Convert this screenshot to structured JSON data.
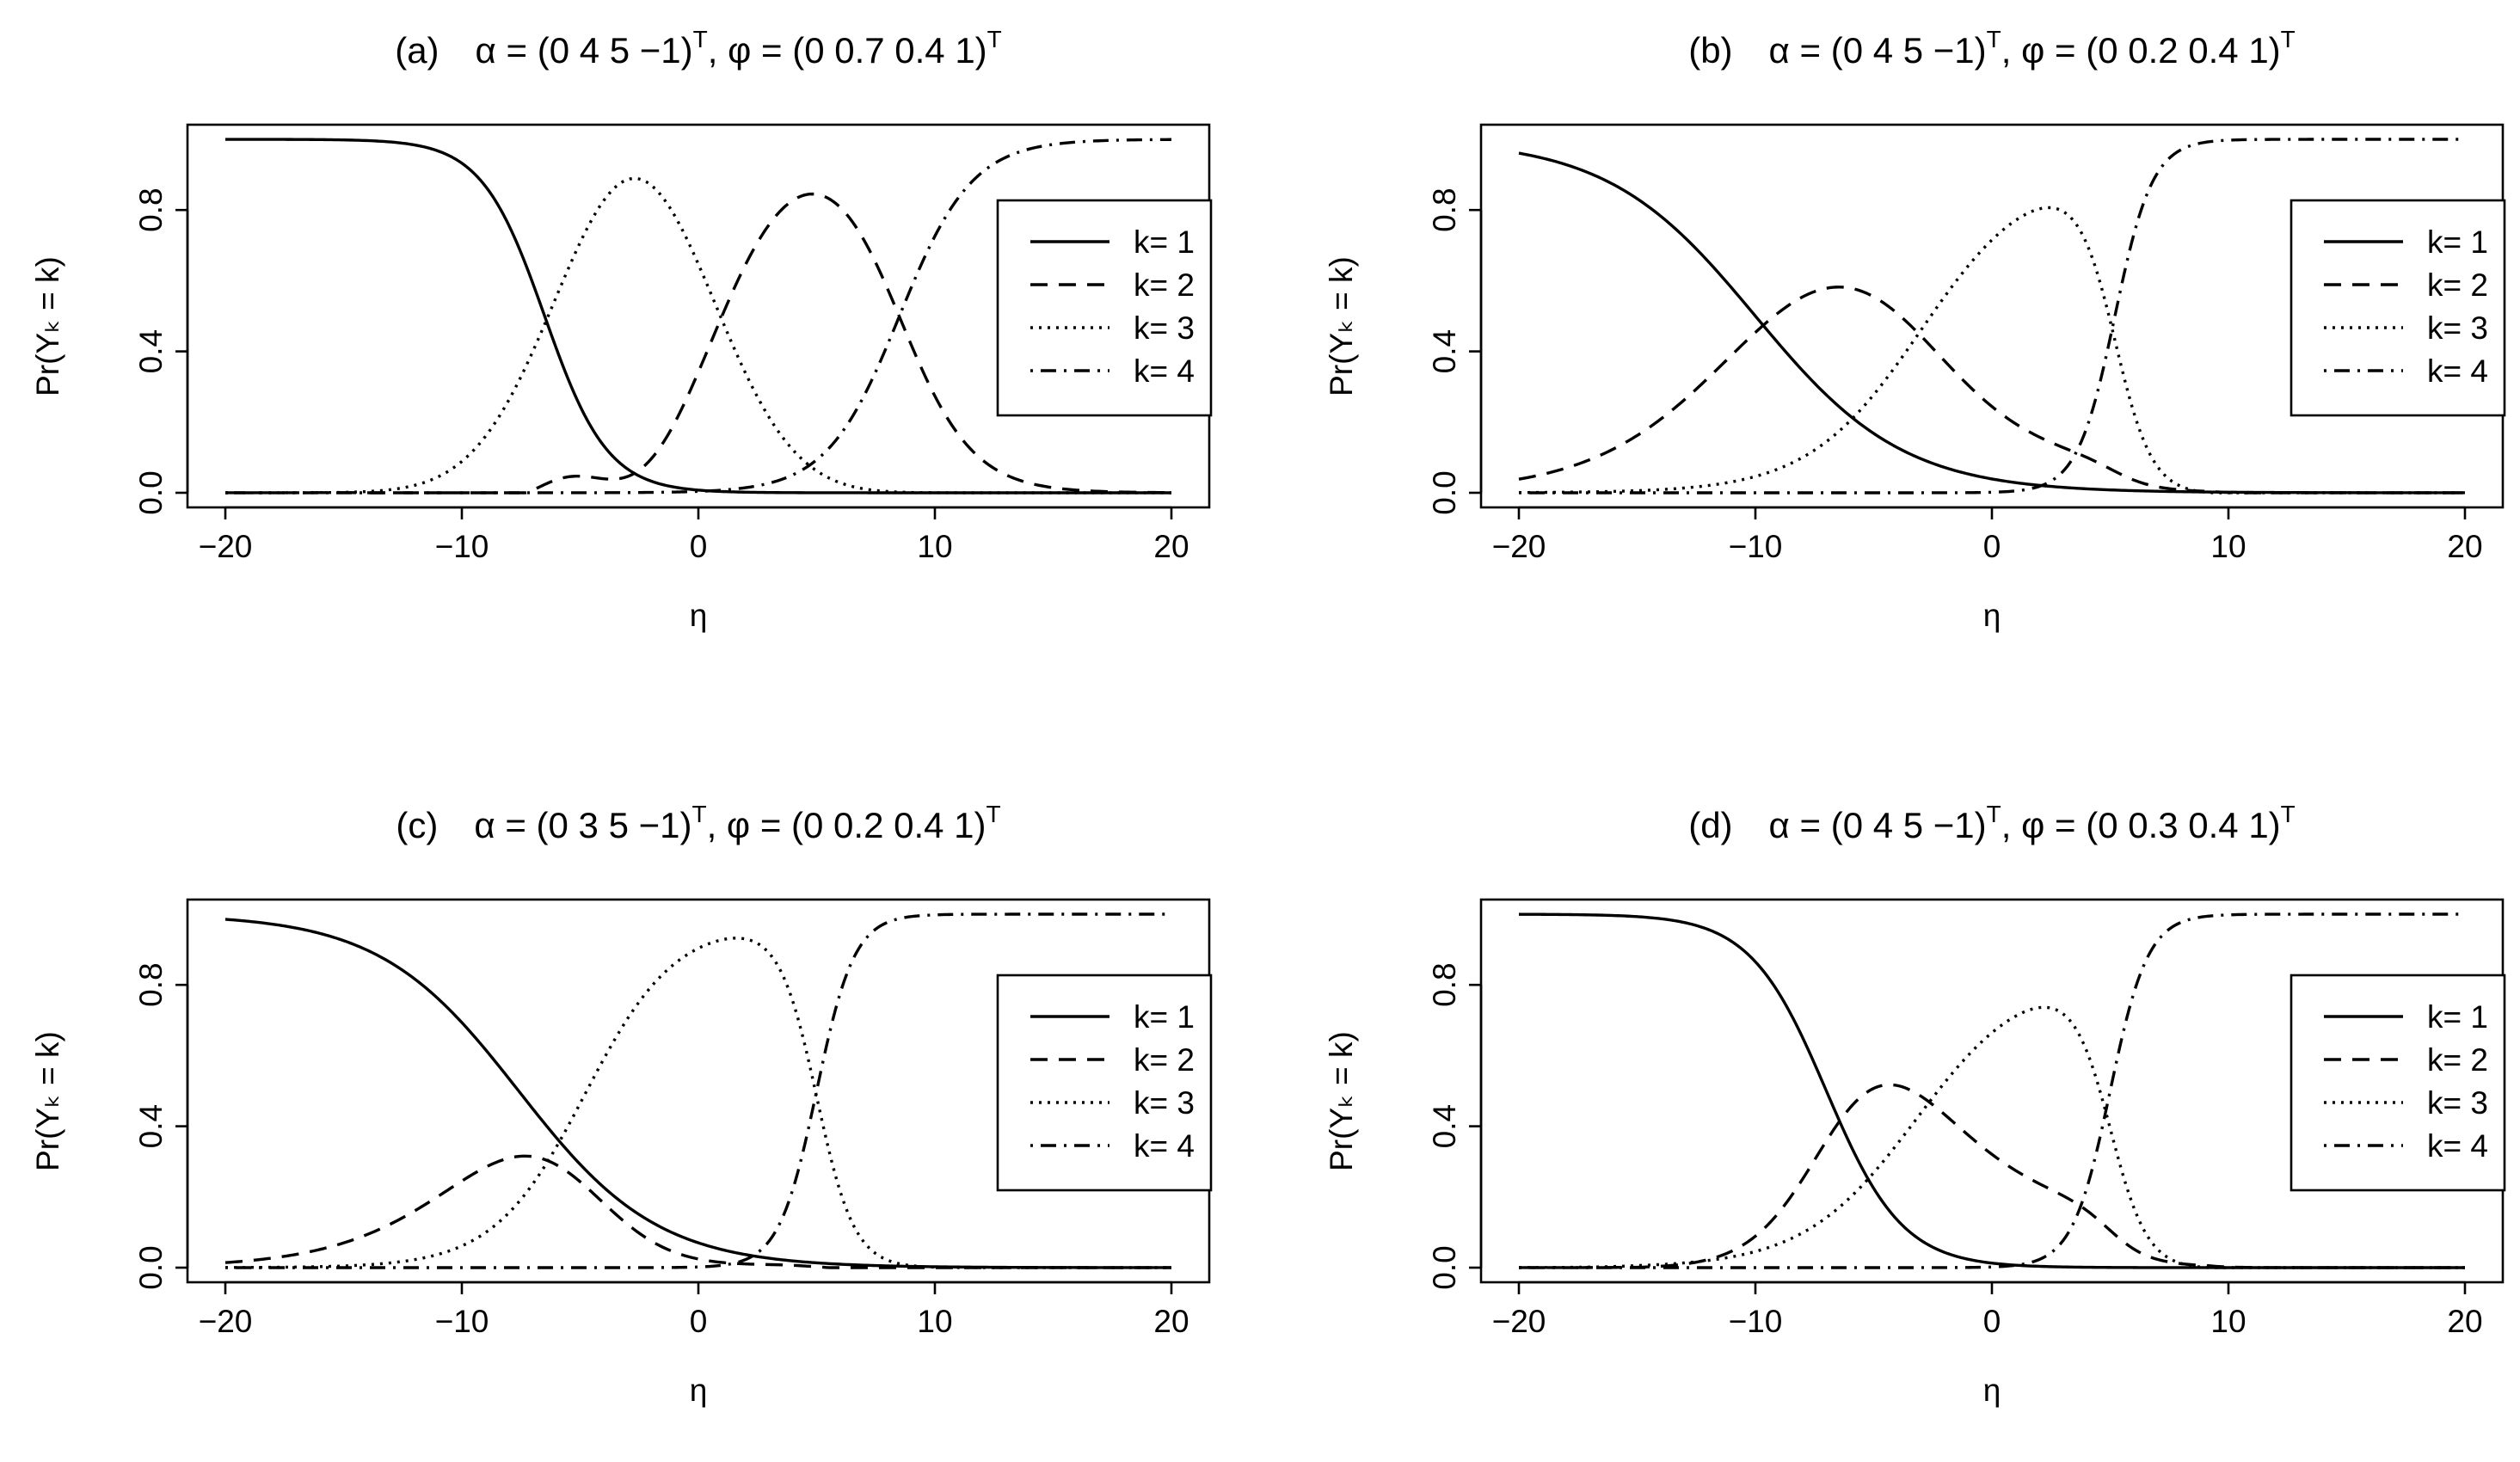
{
  "chart_data": [
    {
      "panel": "a",
      "type": "line",
      "title": {
        "prefix": "(a)",
        "alpha_vec": "(0 4 5 −1)",
        "phi_vec": "(0 0.7 0.4 1)"
      },
      "alpha": [
        0,
        4,
        5,
        -1
      ],
      "phi": [
        0,
        0.7,
        0.4,
        1
      ],
      "xlabel": "η",
      "ylabel": "Pr(Yₖ = k)",
      "xlim": [
        -20,
        20
      ],
      "ylim": [
        0,
        1
      ],
      "xticks": [
        -20,
        -10,
        0,
        10,
        20
      ],
      "yticks": [
        0.0,
        0.4,
        0.8
      ],
      "xtick_labels": [
        "−20",
        "−10",
        "0",
        "10",
        "20"
      ],
      "ytick_labels": [
        "0.0",
        "0.4",
        "0.8"
      ],
      "legend": {
        "placement": "right",
        "entries": [
          "k= 1",
          "k= 2",
          "k= 3",
          "k= 4"
        ]
      },
      "series": [
        {
          "k": 1,
          "style": "solid"
        },
        {
          "k": 2,
          "style": "dashed"
        },
        {
          "k": 3,
          "style": "dotted"
        },
        {
          "k": 4,
          "style": "dashdot"
        }
      ]
    },
    {
      "panel": "b",
      "type": "line",
      "title": {
        "prefix": "(b)",
        "alpha_vec": "(0 4 5 −1)",
        "phi_vec": "(0 0.2 0.4 1)"
      },
      "alpha": [
        0,
        4,
        5,
        -1
      ],
      "phi": [
        0,
        0.2,
        0.4,
        1
      ],
      "xlabel": "η",
      "ylabel": "Pr(Yₖ = k)",
      "xlim": [
        -20,
        20
      ],
      "ylim": [
        0,
        1
      ],
      "xticks": [
        -20,
        -10,
        0,
        10,
        20
      ],
      "yticks": [
        0.0,
        0.4,
        0.8
      ],
      "xtick_labels": [
        "−20",
        "−10",
        "0",
        "10",
        "20"
      ],
      "ytick_labels": [
        "0.0",
        "0.4",
        "0.8"
      ],
      "legend": {
        "placement": "right",
        "entries": [
          "k= 1",
          "k= 2",
          "k= 3",
          "k= 4"
        ]
      },
      "series": [
        {
          "k": 1,
          "style": "solid"
        },
        {
          "k": 2,
          "style": "dashed"
        },
        {
          "k": 3,
          "style": "dotted"
        },
        {
          "k": 4,
          "style": "dashdot"
        }
      ]
    },
    {
      "panel": "c",
      "type": "line",
      "title": {
        "prefix": "(c)",
        "alpha_vec": "(0 3 5 −1)",
        "phi_vec": "(0 0.2 0.4 1)"
      },
      "alpha": [
        0,
        3,
        5,
        -1
      ],
      "phi": [
        0,
        0.2,
        0.4,
        1
      ],
      "xlabel": "η",
      "ylabel": "Pr(Yₖ = k)",
      "xlim": [
        -20,
        20
      ],
      "ylim": [
        0,
        1
      ],
      "xticks": [
        -20,
        -10,
        0,
        10,
        20
      ],
      "yticks": [
        0.0,
        0.4,
        0.8
      ],
      "xtick_labels": [
        "−20",
        "−10",
        "0",
        "10",
        "20"
      ],
      "ytick_labels": [
        "0.0",
        "0.4",
        "0.8"
      ],
      "legend": {
        "placement": "right",
        "entries": [
          "k= 1",
          "k= 2",
          "k= 3",
          "k= 4"
        ]
      },
      "series": [
        {
          "k": 1,
          "style": "solid"
        },
        {
          "k": 2,
          "style": "dashed"
        },
        {
          "k": 3,
          "style": "dotted"
        },
        {
          "k": 4,
          "style": "dashdot"
        }
      ]
    },
    {
      "panel": "d",
      "type": "line",
      "title": {
        "prefix": "(d)",
        "alpha_vec": "(0 4 5 −1)",
        "phi_vec": "(0 0.3 0.4 1)"
      },
      "alpha": [
        0,
        4,
        5,
        -1
      ],
      "phi": [
        0,
        0.3,
        0.4,
        1
      ],
      "xlabel": "η",
      "ylabel": "Pr(Yₖ = k)",
      "xlim": [
        -20,
        20
      ],
      "ylim": [
        0,
        1
      ],
      "xticks": [
        -20,
        -10,
        0,
        10,
        20
      ],
      "yticks": [
        0.0,
        0.4,
        0.8
      ],
      "xtick_labels": [
        "−20",
        "−10",
        "0",
        "10",
        "20"
      ],
      "ytick_labels": [
        "0.0",
        "0.4",
        "0.8"
      ],
      "legend": {
        "placement": "right",
        "entries": [
          "k= 1",
          "k= 2",
          "k= 3",
          "k= 4"
        ]
      },
      "series": [
        {
          "k": 1,
          "style": "solid"
        },
        {
          "k": 2,
          "style": "dashed"
        },
        {
          "k": 3,
          "style": "dotted"
        },
        {
          "k": 4,
          "style": "dashdot"
        }
      ]
    }
  ]
}
